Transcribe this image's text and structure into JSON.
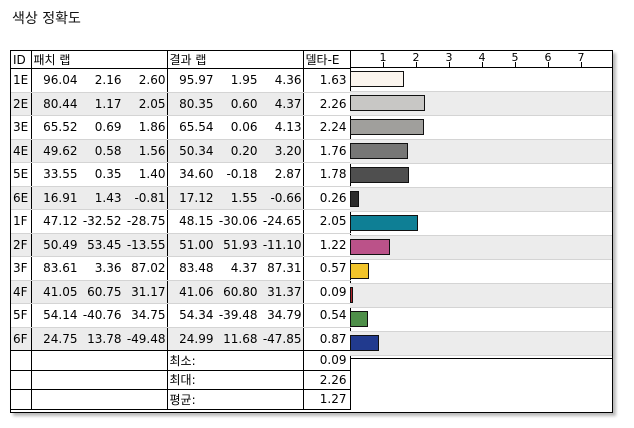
{
  "title": "색상 정확도",
  "headers": {
    "id": "ID",
    "patch": "패치 랩",
    "result": "결과 랩",
    "delta": "델타-E"
  },
  "rows": [
    {
      "id": "1E",
      "patch": [
        "96.04",
        "2.16",
        "2.60"
      ],
      "result": [
        "95.97",
        "1.95",
        "4.36"
      ],
      "delta": "1.63",
      "color": "#fbf5ee"
    },
    {
      "id": "2E",
      "patch": [
        "80.44",
        "1.17",
        "2.05"
      ],
      "result": [
        "80.35",
        "0.60",
        "4.37"
      ],
      "delta": "2.26",
      "color": "#c8c7c5"
    },
    {
      "id": "3E",
      "patch": [
        "65.52",
        "0.69",
        "1.86"
      ],
      "result": [
        "65.54",
        "0.06",
        "4.13"
      ],
      "delta": "2.24",
      "color": "#a09f9c"
    },
    {
      "id": "4E",
      "patch": [
        "49.62",
        "0.58",
        "1.56"
      ],
      "result": [
        "50.34",
        "0.20",
        "3.20"
      ],
      "delta": "1.76",
      "color": "#777776"
    },
    {
      "id": "5E",
      "patch": [
        "33.55",
        "0.35",
        "1.40"
      ],
      "result": [
        "34.60",
        "-0.18",
        "2.87"
      ],
      "delta": "1.78",
      "color": "#4f4f4f"
    },
    {
      "id": "6E",
      "patch": [
        "16.91",
        "1.43",
        "-0.81"
      ],
      "result": [
        "17.12",
        "1.55",
        "-0.66"
      ],
      "delta": "0.26",
      "color": "#2b2b2b"
    },
    {
      "id": "1F",
      "patch": [
        "47.12",
        "-32.52",
        "-28.75"
      ],
      "result": [
        "48.15",
        "-30.06",
        "-24.65"
      ],
      "delta": "2.05",
      "color": "#0e7f95"
    },
    {
      "id": "2F",
      "patch": [
        "50.49",
        "53.45",
        "-13.55"
      ],
      "result": [
        "51.00",
        "51.93",
        "-11.10"
      ],
      "delta": "1.22",
      "color": "#bb5289"
    },
    {
      "id": "3F",
      "patch": [
        "83.61",
        "3.36",
        "87.02"
      ],
      "result": [
        "83.48",
        "4.37",
        "87.31"
      ],
      "delta": "0.57",
      "color": "#f2c42a"
    },
    {
      "id": "4F",
      "patch": [
        "41.05",
        "60.75",
        "31.17"
      ],
      "result": [
        "41.06",
        "60.80",
        "31.37"
      ],
      "delta": "0.09",
      "color": "#b2252d"
    },
    {
      "id": "5F",
      "patch": [
        "54.14",
        "-40.76",
        "34.75"
      ],
      "result": [
        "54.34",
        "-39.48",
        "34.79"
      ],
      "delta": "0.54",
      "color": "#4e8f49"
    },
    {
      "id": "6F",
      "patch": [
        "24.75",
        "13.78",
        "-49.48"
      ],
      "result": [
        "24.99",
        "11.68",
        "-47.85"
      ],
      "delta": "0.87",
      "color": "#213a8e"
    }
  ],
  "stats": [
    {
      "label": "최소:",
      "value": "0.09"
    },
    {
      "label": "최대:",
      "value": "2.26"
    },
    {
      "label": "평균:",
      "value": "1.27"
    }
  ],
  "axis_ticks": [
    "1",
    "2",
    "3",
    "4",
    "5",
    "6",
    "7"
  ],
  "chart_data": {
    "type": "bar",
    "categories": [
      "1E",
      "2E",
      "3E",
      "4E",
      "5E",
      "6E",
      "1F",
      "2F",
      "3F",
      "4F",
      "5F",
      "6F"
    ],
    "values": [
      1.63,
      2.26,
      2.24,
      1.76,
      1.78,
      0.26,
      2.05,
      1.22,
      0.57,
      0.09,
      0.54,
      0.87
    ],
    "xlim": [
      0,
      8
    ],
    "ticks": [
      1,
      2,
      3,
      4,
      5,
      6,
      7
    ],
    "grid": false
  }
}
